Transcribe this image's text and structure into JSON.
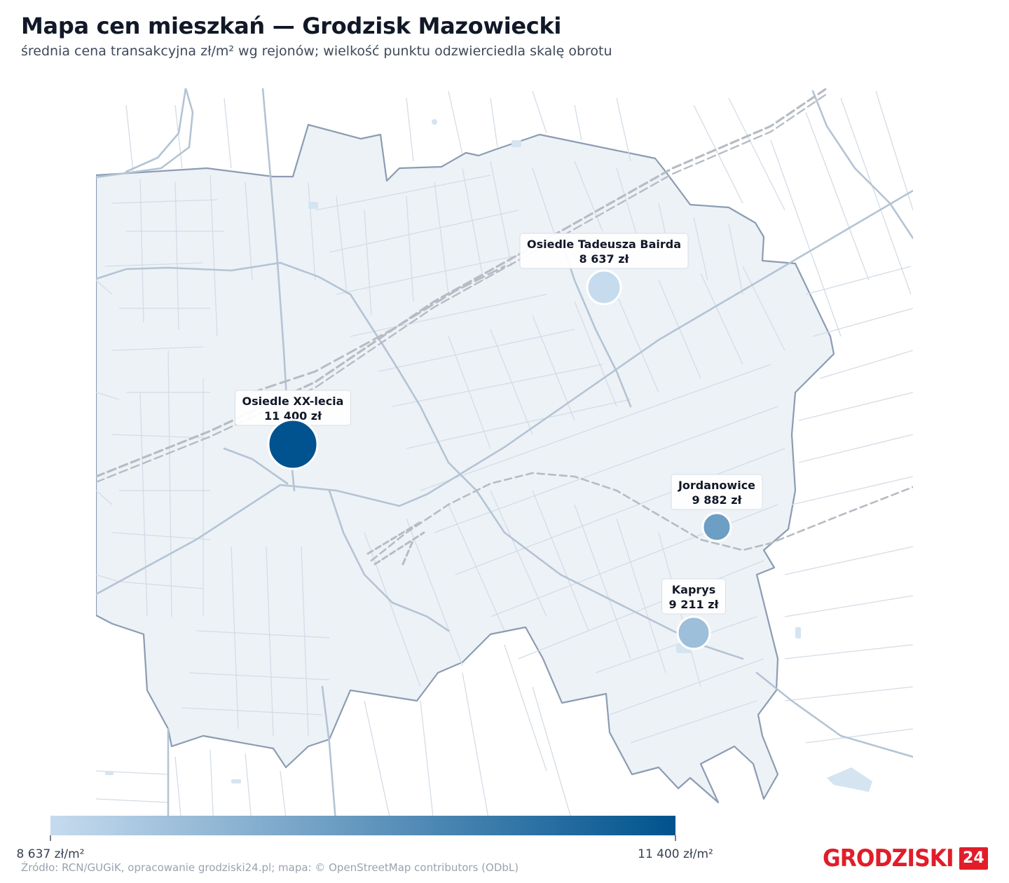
{
  "header": {
    "title": "Mapa cen mieszkań — Grodzisk Mazowiecki",
    "subtitle": "średnia cena transakcyjna zł/m² wg rejonów; wielkość punktu odzwierciedla skalę obrotu"
  },
  "colors": {
    "low": "#c6dbee",
    "high": "#00538e",
    "area_fill": "#edf2f7",
    "boundary": "#8c9cb2",
    "road": "#b4c4d4",
    "rail": "#b7bcc4",
    "water": "#d5e4f1",
    "brand": "#e11d2a"
  },
  "districts": [
    {
      "name": "Osiedle Tadeusza Bairda",
      "value_label": "8 637 zł",
      "price": 8637
    },
    {
      "name": "Osiedle XX-lecia",
      "value_label": "11 400 zł",
      "price": 11400
    },
    {
      "name": "Jordanowice",
      "value_label": "9 882 zł",
      "price": 9882
    },
    {
      "name": "Kaprys",
      "value_label": "9 211 zł",
      "price": 9211
    }
  ],
  "legend": {
    "min": 8637,
    "max": 11400,
    "min_label": "8 637 zł/m²",
    "max_label": "11 400 zł/m²"
  },
  "footer": {
    "source": "Źródło: RCN/GUGiK, opracowanie grodziski24.pl; mapa: © OpenStreetMap contributors (ODbL)"
  },
  "logo": {
    "word": "GRODZISKI",
    "number": "24"
  }
}
